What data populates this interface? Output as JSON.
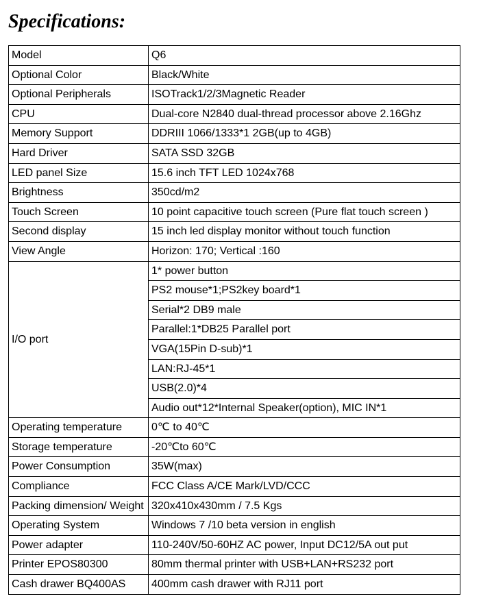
{
  "title": "Specifications:",
  "rows": [
    {
      "label": "Model",
      "value": " Q6"
    },
    {
      "label": "Optional Color",
      "value": "Black/White"
    },
    {
      "label": "Optional Peripherals",
      "value": "ISOTrack1/2/3Magnetic Reader"
    },
    {
      "label": "CPU",
      "value": "  Dual-core N2840 dual-thread processor above 2.16Ghz"
    },
    {
      "label": "Memory Support",
      "value": "DDRIII 1066/1333*1 2GB(up to 4GB)"
    },
    {
      "label": "Hard Driver",
      "value": "SATA SSD 32GB"
    },
    {
      "label": "LED panel Size",
      "value": "15.6 inch TFT LED 1024x768"
    },
    {
      "label": "Brightness",
      "value": "350cd/m2"
    },
    {
      "label": "Touch Screen",
      "value": "10 point capacitive  touch screen (Pure flat touch screen )"
    },
    {
      "label": "Second display",
      "value": "15 inch led display monitor without touch function"
    },
    {
      "label": "View Angle",
      "value": "Horizon: 170; Vertical :160"
    }
  ],
  "io_port": {
    "label": "I/O port",
    "values": [
      "1* power button",
      "PS2 mouse*1;PS2key board*1",
      "Serial*2  DB9 male",
      "Parallel:1*DB25 Parallel port",
      "VGA(15Pin D-sub)*1",
      "LAN:RJ-45*1",
      "USB(2.0)*4",
      "Audio out*12*Internal Speaker(option), MIC IN*1"
    ]
  },
  "rows2": [
    {
      "label": "Operating temperature",
      "value": "0℃ to 40℃"
    },
    {
      "label": "Storage temperature",
      "value": "-20℃to 60℃"
    },
    {
      "label": "Power Consumption",
      "value": "35W(max)"
    },
    {
      "label": "Compliance",
      "value": "FCC Class A/CE Mark/LVD/CCC"
    },
    {
      "label": "Packing dimension/ Weight",
      "value": "320x410x430mm / 7.5 Kgs"
    },
    {
      "label": "Operating System",
      "value": "Windows 7 /10 beta version in english"
    },
    {
      "label": "Power adapter",
      "value": "110-240V/50-60HZ AC power,  Input DC12/5A out put"
    },
    {
      "label": "Printer EPOS80300",
      "value": "80mm thermal printer with USB+LAN+RS232 port"
    },
    {
      "label": "Cash drawer BQ400AS",
      "value": "400mm cash drawer with RJ11 port"
    }
  ]
}
